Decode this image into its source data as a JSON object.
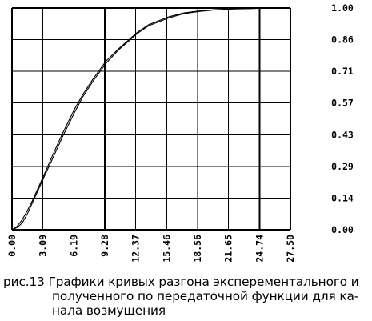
{
  "chart_data": {
    "type": "line",
    "x_ticks": [
      "0.00",
      "3.09",
      "6.19",
      "9.28",
      "12.37",
      "15.46",
      "18.56",
      "21.65",
      "24.74",
      "27.50"
    ],
    "y_ticks": [
      "1.00",
      "0.86",
      "0.71",
      "0.57",
      "0.43",
      "0.29",
      "0.14",
      "0.00"
    ],
    "xlim": [
      0,
      27.5
    ],
    "ylim": [
      0,
      1
    ],
    "grid": true,
    "series": [
      {
        "x": [
          0,
          0.5,
          1,
          1.5,
          2,
          2.5,
          3.09,
          4,
          5,
          6.19,
          7,
          8,
          9.28,
          10.5,
          11.5,
          12.37,
          13.5,
          15.46,
          17,
          18.56,
          20,
          21.65,
          24.74,
          27.5
        ],
        "values": [
          0,
          0.01,
          0.03,
          0.07,
          0.12,
          0.17,
          0.23,
          0.32,
          0.42,
          0.53,
          0.6,
          0.67,
          0.75,
          0.81,
          0.85,
          0.885,
          0.92,
          0.955,
          0.975,
          0.985,
          0.991,
          0.995,
          0.999,
          1.0
        ]
      },
      {
        "x": [
          0,
          0.5,
          1,
          1.5,
          2,
          2.5,
          3.09,
          4,
          5,
          6.19,
          7,
          8,
          9.28,
          10.5,
          11.5,
          12.37,
          13.5,
          15.46,
          17,
          18.56,
          20,
          21.65,
          24.74,
          27.5
        ],
        "values": [
          0,
          0.015,
          0.045,
          0.085,
          0.13,
          0.18,
          0.24,
          0.335,
          0.435,
          0.545,
          0.61,
          0.68,
          0.76,
          0.815,
          0.855,
          0.89,
          0.925,
          0.96,
          0.978,
          0.987,
          0.992,
          0.996,
          0.999,
          1.0
        ]
      }
    ],
    "colors": {
      "curve": "#000000",
      "grid": "#000000",
      "background": "#ffffff"
    }
  },
  "caption": {
    "line1": "рис.13 Графики кривых разгона эксперементального и",
    "line2": "полученного по передаточной функции для ка-",
    "line3": "нала возмущения"
  }
}
